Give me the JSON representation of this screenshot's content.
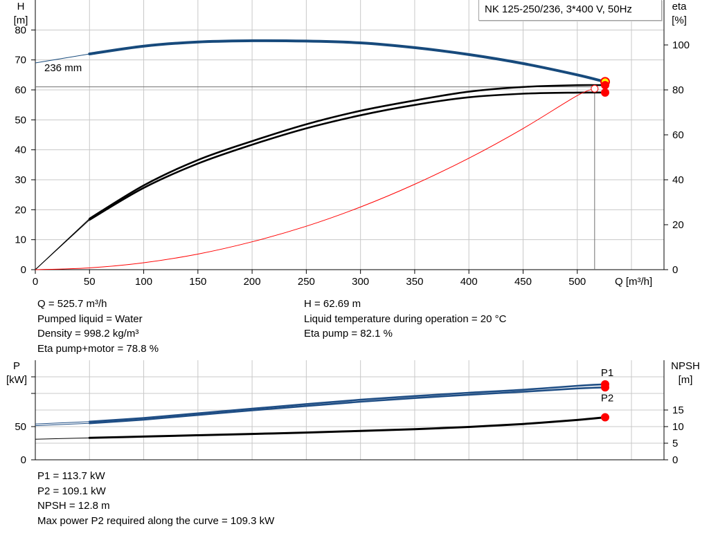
{
  "header": {
    "pump_title": "NK 125-250/236, 3*400 V, 50Hz"
  },
  "info_top": {
    "left": [
      "Q = 525.7 m³/h",
      "Pumped liquid = Water",
      "Density = 998.2 kg/m³",
      "Eta pump+motor = 78.8 %"
    ],
    "right": [
      "H = 62.69 m",
      "Liquid temperature during operation = 20 °C",
      "Eta pump = 82.1 %"
    ]
  },
  "info_bottom": {
    "lines": [
      "P1 = 113.7 kW",
      "P2 = 109.1 kW",
      "NPSH = 12.8 m",
      "Max power P2 required along the curve = 109.3 kW"
    ]
  },
  "colors": {
    "head_curve": "#174a7c",
    "power_curve": "#1f4e85",
    "efficiency_curve": "#000000",
    "system_curve": "#ff0000",
    "duty_point": "#ffff00",
    "marker": "#ff0000",
    "grid": "#c8c8c8"
  },
  "chart_data": [
    {
      "type": "line",
      "title": "",
      "xlabel": "Q [m³/h]",
      "ylabel": "H\n[m]",
      "y2label": "eta\n[%]",
      "xlim": [
        0,
        580
      ],
      "ylim": [
        0,
        90
      ],
      "y2lim": [
        0,
        120
      ],
      "xticks": [
        0,
        50,
        100,
        150,
        200,
        250,
        300,
        350,
        400,
        450,
        500
      ],
      "yticks": [
        0,
        10,
        20,
        30,
        40,
        50,
        60,
        70,
        80
      ],
      "y2ticks": [
        0,
        20,
        40,
        60,
        80,
        100
      ],
      "grid": true,
      "annotations": [
        {
          "text": "236 mm",
          "x": 70,
          "y": 73
        }
      ],
      "duty_point": {
        "x": 525.7,
        "y": 62.69
      },
      "series": [
        {
          "name": "",
          "axis": "H",
          "style": "head",
          "x": [
            0,
            50,
            100,
            150,
            200,
            250,
            300,
            350,
            400,
            450,
            500,
            525.7
          ],
          "y": [
            69,
            72,
            74.6,
            76,
            76.4,
            76.3,
            75.7,
            74.1,
            71.8,
            68.8,
            65,
            62.69
          ]
        },
        {
          "name": "",
          "axis": "eta",
          "style": "eta_pump",
          "x": [
            0,
            50,
            100,
            150,
            200,
            250,
            300,
            350,
            400,
            450,
            500,
            525.7
          ],
          "y": [
            0,
            22.7,
            37.5,
            48.8,
            57.2,
            64.7,
            70.7,
            75.3,
            79.2,
            81.3,
            82.1,
            82.1
          ]
        },
        {
          "name": "",
          "axis": "eta",
          "style": "eta_total",
          "x": [
            0,
            50,
            100,
            150,
            200,
            250,
            300,
            350,
            400,
            450,
            500,
            525.7
          ],
          "y": [
            0,
            22.2,
            36.4,
            47.2,
            55.6,
            62.9,
            68.7,
            73.3,
            76.7,
            78.3,
            78.8,
            78.8
          ]
        },
        {
          "name": "",
          "axis": "H",
          "style": "system",
          "x": [
            0,
            50,
            100,
            150,
            200,
            250,
            300,
            350,
            400,
            450,
            500,
            516
          ],
          "y": [
            0,
            0.6,
            2.3,
            5.2,
            9.3,
            14.5,
            20.9,
            28.5,
            37.2,
            47.1,
            58.1,
            60.4
          ]
        }
      ]
    },
    {
      "type": "line",
      "title": "",
      "xlabel": "",
      "ylabel": "P\n[kW]",
      "y2label": "NPSH\n[m]",
      "xlim": [
        0,
        580
      ],
      "ylim": [
        0,
        150
      ],
      "y2lim": [
        0,
        30
      ],
      "yticks": [
        0,
        50
      ],
      "y2ticks": [
        0,
        5,
        10,
        15
      ],
      "grid": true,
      "series": [
        {
          "name": "P1",
          "axis": "P",
          "style": "power",
          "x": [
            0,
            50,
            100,
            150,
            200,
            250,
            300,
            350,
            400,
            450,
            500,
            525.7
          ],
          "y": [
            54,
            57.5,
            63,
            70,
            77,
            84,
            90.5,
            96,
            101,
            105.5,
            111.5,
            113.7
          ]
        },
        {
          "name": "P2",
          "axis": "P",
          "style": "power",
          "x": [
            0,
            50,
            100,
            150,
            200,
            250,
            300,
            350,
            400,
            450,
            500,
            525.7
          ],
          "y": [
            51.5,
            55,
            60.5,
            67.5,
            74.5,
            81,
            87.5,
            93,
            98,
            102.5,
            107.5,
            109.1
          ]
        },
        {
          "name": "",
          "axis": "NPSH",
          "style": "npsh",
          "x": [
            0,
            50,
            100,
            150,
            200,
            250,
            300,
            350,
            400,
            450,
            500,
            525.7
          ],
          "y": [
            6.2,
            6.6,
            7,
            7.4,
            7.8,
            8.2,
            8.7,
            9.2,
            9.9,
            10.8,
            12.0,
            12.8
          ]
        }
      ]
    }
  ]
}
